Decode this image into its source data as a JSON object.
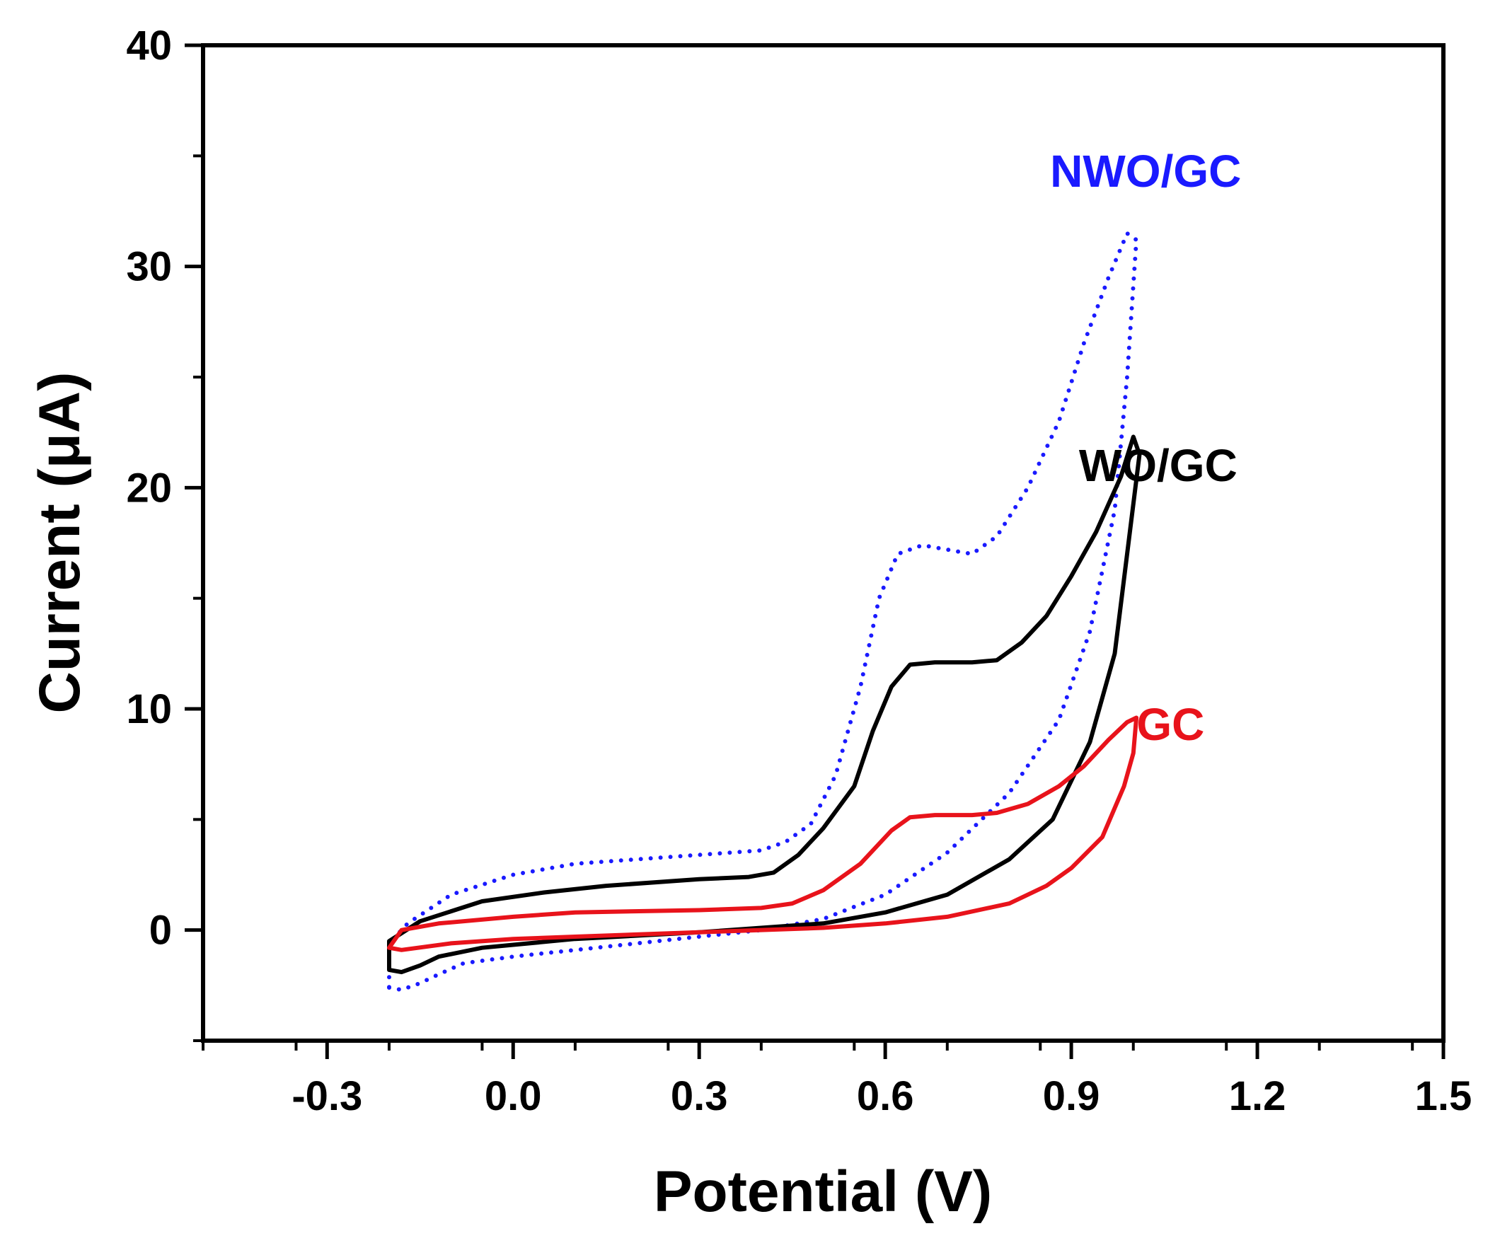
{
  "chart_data": {
    "type": "line",
    "title": "",
    "xlabel": "Potential (V)",
    "ylabel": "Current (μA)",
    "xlim": [
      -0.5,
      1.5
    ],
    "ylim": [
      -5,
      40
    ],
    "x_ticks": [
      -0.3,
      0.0,
      0.3,
      0.6,
      0.9,
      1.2,
      1.5
    ],
    "x_tick_labels": [
      "-0.3",
      "0.0",
      "0.3",
      "0.6",
      "0.9",
      "1.2",
      "1.5"
    ],
    "y_ticks": [
      0,
      10,
      20,
      30,
      40
    ],
    "y_tick_labels": [
      "0",
      "10",
      "20",
      "30",
      "40"
    ],
    "grid": false,
    "legend": "inline labels next to curves",
    "series": [
      {
        "name": "NWO/GC",
        "color": "#1a1aff",
        "style": "dotted",
        "label_anchor": [
          1.02,
          33.6
        ],
        "points": [
          [
            -0.2,
            -2.6
          ],
          [
            -0.18,
            -2.7
          ],
          [
            -0.15,
            -2.4
          ],
          [
            -0.12,
            -2.0
          ],
          [
            -0.08,
            -1.5
          ],
          [
            0.0,
            -1.2
          ],
          [
            0.1,
            -0.9
          ],
          [
            0.2,
            -0.6
          ],
          [
            0.3,
            -0.3
          ],
          [
            0.4,
            0.0
          ],
          [
            0.5,
            0.5
          ],
          [
            0.6,
            1.6
          ],
          [
            0.7,
            3.5
          ],
          [
            0.8,
            6.2
          ],
          [
            0.88,
            9.5
          ],
          [
            0.93,
            13.5
          ],
          [
            0.97,
            19.0
          ],
          [
            0.99,
            25.0
          ],
          [
            1.005,
            31.2
          ],
          [
            0.99,
            31.5
          ],
          [
            0.96,
            29.5
          ],
          [
            0.92,
            26.5
          ],
          [
            0.88,
            23.0
          ],
          [
            0.83,
            20.0
          ],
          [
            0.78,
            17.8
          ],
          [
            0.74,
            17.0
          ],
          [
            0.7,
            17.2
          ],
          [
            0.66,
            17.4
          ],
          [
            0.62,
            17.0
          ],
          [
            0.59,
            15.0
          ],
          [
            0.56,
            11.0
          ],
          [
            0.52,
            7.0
          ],
          [
            0.48,
            4.8
          ],
          [
            0.44,
            4.0
          ],
          [
            0.4,
            3.6
          ],
          [
            0.3,
            3.4
          ],
          [
            0.1,
            3.0
          ],
          [
            0.0,
            2.5
          ],
          [
            -0.1,
            1.6
          ],
          [
            -0.17,
            0.3
          ],
          [
            -0.2,
            -0.6
          ],
          [
            -0.2,
            -2.6
          ]
        ]
      },
      {
        "name": "WO/GC",
        "color": "#000000",
        "style": "solid",
        "label_anchor": [
          1.04,
          20.3
        ],
        "points": [
          [
            -0.2,
            -1.8
          ],
          [
            -0.18,
            -1.9
          ],
          [
            -0.15,
            -1.6
          ],
          [
            -0.12,
            -1.2
          ],
          [
            -0.05,
            -0.8
          ],
          [
            0.1,
            -0.4
          ],
          [
            0.3,
            -0.1
          ],
          [
            0.5,
            0.3
          ],
          [
            0.6,
            0.8
          ],
          [
            0.7,
            1.6
          ],
          [
            0.8,
            3.2
          ],
          [
            0.87,
            5.0
          ],
          [
            0.93,
            8.5
          ],
          [
            0.97,
            12.5
          ],
          [
            0.99,
            17.0
          ],
          [
            1.01,
            21.5
          ],
          [
            1.0,
            22.3
          ],
          [
            0.98,
            20.5
          ],
          [
            0.94,
            18.0
          ],
          [
            0.9,
            16.0
          ],
          [
            0.86,
            14.2
          ],
          [
            0.82,
            13.0
          ],
          [
            0.78,
            12.2
          ],
          [
            0.74,
            12.1
          ],
          [
            0.68,
            12.1
          ],
          [
            0.64,
            12.0
          ],
          [
            0.61,
            11.0
          ],
          [
            0.58,
            9.0
          ],
          [
            0.55,
            6.5
          ],
          [
            0.5,
            4.6
          ],
          [
            0.46,
            3.4
          ],
          [
            0.42,
            2.6
          ],
          [
            0.38,
            2.4
          ],
          [
            0.3,
            2.3
          ],
          [
            0.15,
            2.0
          ],
          [
            0.05,
            1.7
          ],
          [
            -0.05,
            1.3
          ],
          [
            -0.15,
            0.4
          ],
          [
            -0.2,
            -0.5
          ],
          [
            -0.2,
            -1.8
          ]
        ]
      },
      {
        "name": "GC",
        "color": "#e8131b",
        "style": "solid",
        "label_anchor": [
          1.06,
          8.6
        ],
        "points": [
          [
            -0.2,
            -0.8
          ],
          [
            -0.18,
            -0.9
          ],
          [
            -0.1,
            -0.6
          ],
          [
            0.0,
            -0.4
          ],
          [
            0.1,
            -0.3
          ],
          [
            0.3,
            -0.1
          ],
          [
            0.5,
            0.1
          ],
          [
            0.6,
            0.3
          ],
          [
            0.7,
            0.6
          ],
          [
            0.8,
            1.2
          ],
          [
            0.86,
            2.0
          ],
          [
            0.9,
            2.8
          ],
          [
            0.95,
            4.2
          ],
          [
            0.985,
            6.5
          ],
          [
            1.0,
            8.0
          ],
          [
            1.005,
            9.6
          ],
          [
            0.99,
            9.4
          ],
          [
            0.96,
            8.6
          ],
          [
            0.92,
            7.4
          ],
          [
            0.88,
            6.5
          ],
          [
            0.83,
            5.7
          ],
          [
            0.78,
            5.3
          ],
          [
            0.74,
            5.2
          ],
          [
            0.68,
            5.2
          ],
          [
            0.64,
            5.1
          ],
          [
            0.61,
            4.5
          ],
          [
            0.56,
            3.0
          ],
          [
            0.5,
            1.8
          ],
          [
            0.45,
            1.2
          ],
          [
            0.4,
            1.0
          ],
          [
            0.3,
            0.9
          ],
          [
            0.1,
            0.8
          ],
          [
            0.0,
            0.6
          ],
          [
            -0.12,
            0.3
          ],
          [
            -0.18,
            0.0
          ],
          [
            -0.2,
            -0.8
          ]
        ]
      }
    ]
  }
}
